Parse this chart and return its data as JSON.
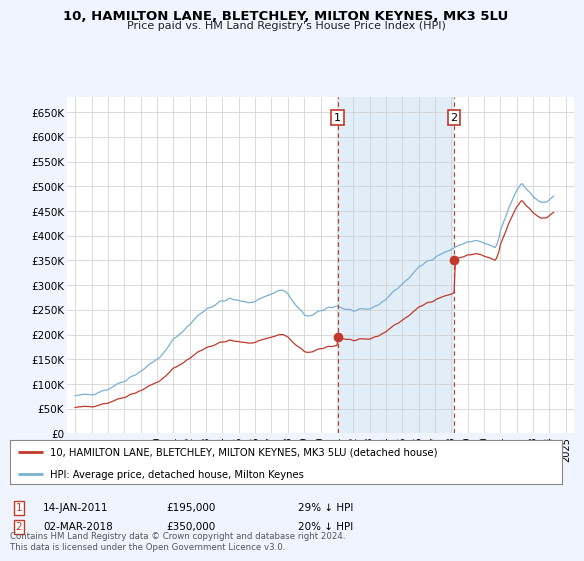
{
  "title": "10, HAMILTON LANE, BLETCHLEY, MILTON KEYNES, MK3 5LU",
  "subtitle": "Price paid vs. HM Land Registry's House Price Index (HPI)",
  "legend_line1": "10, HAMILTON LANE, BLETCHLEY, MILTON KEYNES, MK3 5LU (detached house)",
  "legend_line2": "HPI: Average price, detached house, Milton Keynes",
  "marker1_date": "14-JAN-2011",
  "marker1_price": 195000,
  "marker1_hpi": "29% ↓ HPI",
  "marker1_x": 2011.04,
  "marker2_date": "02-MAR-2018",
  "marker2_price": 350000,
  "marker2_hpi": "20% ↓ HPI",
  "marker2_x": 2018.17,
  "footer": "Contains HM Land Registry data © Crown copyright and database right 2024.\nThis data is licensed under the Open Government Licence v3.0.",
  "hpi_color": "#7ab0d4",
  "hpi_fill_color": "#d6e8f5",
  "price_color": "#c0392b",
  "vline_color": "#c0392b",
  "background_color": "#f0f4ff",
  "plot_bg": "#ffffff",
  "ylim": [
    0,
    680000
  ],
  "xlim_start": 1994.5,
  "xlim_end": 2025.5,
  "yticks": [
    0,
    50000,
    100000,
    150000,
    200000,
    250000,
    300000,
    350000,
    400000,
    450000,
    500000,
    550000,
    600000,
    650000
  ],
  "ytick_labels": [
    "£0",
    "£50K",
    "£100K",
    "£150K",
    "£200K",
    "£250K",
    "£300K",
    "£350K",
    "£400K",
    "£450K",
    "£500K",
    "£550K",
    "£600K",
    "£650K"
  ],
  "xticks": [
    1995,
    1996,
    1997,
    1998,
    1999,
    2000,
    2001,
    2002,
    2003,
    2004,
    2005,
    2006,
    2007,
    2008,
    2009,
    2010,
    2011,
    2012,
    2013,
    2014,
    2015,
    2016,
    2017,
    2018,
    2019,
    2020,
    2021,
    2022,
    2023,
    2024,
    2025
  ],
  "sale1_x": 1995.0,
  "sale1_y": 52500,
  "sale2_x": 2011.04,
  "sale2_y": 195000,
  "sale3_x": 2018.17,
  "sale3_y": 350000
}
